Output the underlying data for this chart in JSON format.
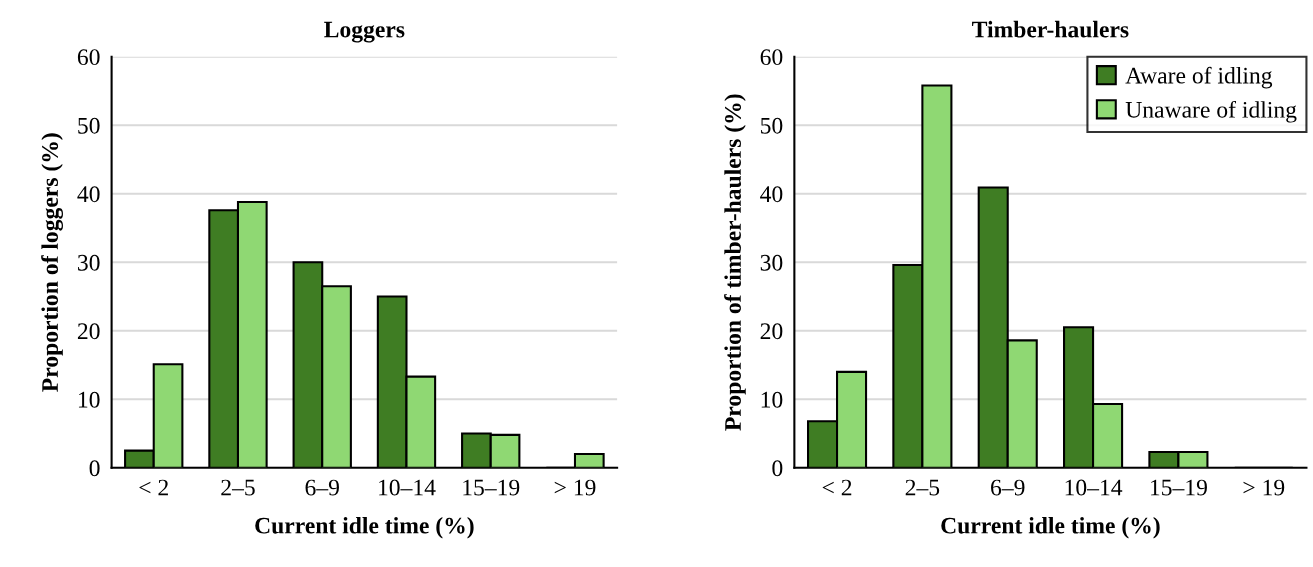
{
  "chart_data": [
    {
      "type": "bar",
      "title": "Loggers",
      "xlabel": "Current idle time (%)",
      "ylabel": "Proportion of loggers (%)",
      "categories": [
        "< 2",
        "2–5",
        "6–9",
        "10–14",
        "15–19",
        "> 19"
      ],
      "series": [
        {
          "color": "#3f7d23",
          "values": [
            2.5,
            37.6,
            30.0,
            25.0,
            5.0,
            0
          ]
        },
        {
          "color": "#8fd873",
          "values": [
            15.1,
            38.8,
            26.5,
            13.3,
            4.8,
            2.0
          ]
        }
      ],
      "ylim": [
        0,
        60
      ],
      "yticks": [
        0,
        10,
        20,
        30,
        40,
        50,
        60
      ],
      "grid": "y"
    },
    {
      "type": "bar",
      "title": "Timber-haulers",
      "xlabel": "Current idle time (%)",
      "ylabel": "Proportion of timber-haulers (%)",
      "categories": [
        "< 2",
        "2–5",
        "6–9",
        "10–14",
        "15–19",
        "> 19"
      ],
      "series": [
        {
          "name": "Aware of idling",
          "color": "#3f7d23",
          "values": [
            6.8,
            29.6,
            40.9,
            20.5,
            2.3,
            0
          ]
        },
        {
          "name": "Unaware of idling",
          "color": "#8fd873",
          "values": [
            14.0,
            55.8,
            18.6,
            9.3,
            2.3,
            0
          ]
        }
      ],
      "ylim": [
        0,
        60
      ],
      "yticks": [
        0,
        10,
        20,
        30,
        40,
        50,
        60
      ],
      "grid": "y",
      "legend": "top right"
    }
  ]
}
